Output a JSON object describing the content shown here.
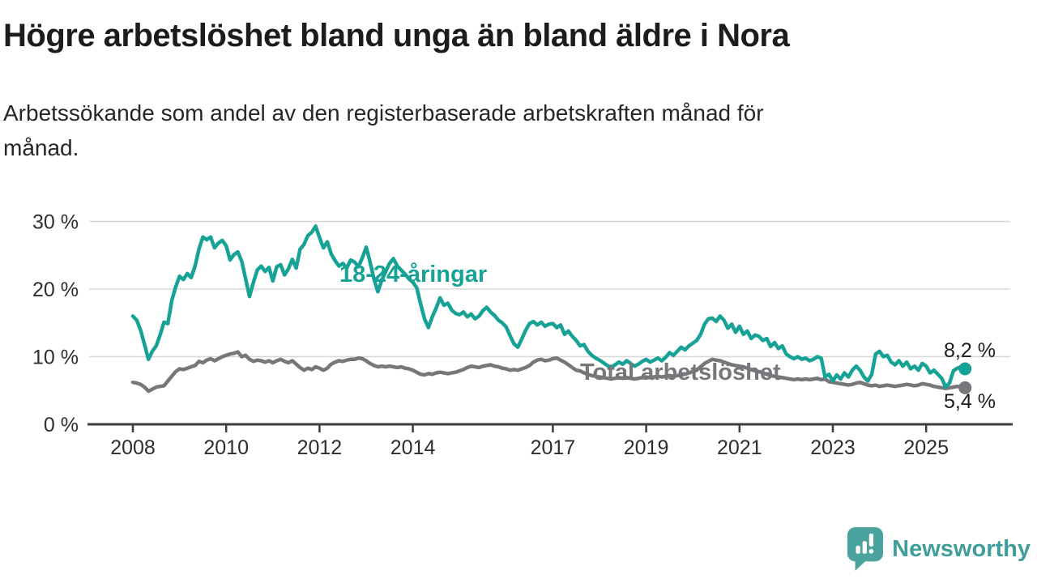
{
  "header": {
    "title": "Högre arbetslöshet bland unga än bland äldre i Nora",
    "subtitle_lines": [
      "Arbetssökande som andel av den registerbaserade arbetskraften månad för",
      "månad."
    ]
  },
  "chart_data": {
    "type": "line",
    "title": "Högre arbetslöshet bland unga än bland äldre i Nora",
    "subtitle": "Arbetssökande som andel av den registerbaserade arbetskraften månad för månad.",
    "x_unit": "month",
    "x_start": "2008-01",
    "x_end": "2025-11",
    "x_start_year": 2008,
    "ylim": [
      0,
      30
    ],
    "grid": true,
    "y_ticks": [
      30,
      20,
      10,
      0
    ],
    "y_tick_labels": [
      "30 %",
      "20 %",
      "10 %",
      "0 %"
    ],
    "x_ticks": [
      2008,
      2010,
      2012,
      2014,
      2017,
      2019,
      2021,
      2023,
      2025
    ],
    "x_tick_labels": [
      "2008",
      "2010",
      "2012",
      "2014",
      "2017",
      "2019",
      "2021",
      "2023",
      "2025"
    ],
    "series": [
      {
        "name": "Total arbetslöshet",
        "color": "#77767a",
        "end_label": "5,4 %",
        "end_value": 5.4,
        "values": [
          6.2,
          6.1,
          5.9,
          5.5,
          4.9,
          5.2,
          5.5,
          5.6,
          5.7,
          6.4,
          7.1,
          7.8,
          8.2,
          8.1,
          8.3,
          8.5,
          8.7,
          9.3,
          9.1,
          9.5,
          9.7,
          9.4,
          9.7,
          10.0,
          10.2,
          10.4,
          10.5,
          10.7,
          10.0,
          10.2,
          9.6,
          9.3,
          9.5,
          9.4,
          9.2,
          9.4,
          9.1,
          9.4,
          9.6,
          9.3,
          9.1,
          9.4,
          8.9,
          8.4,
          8.0,
          8.3,
          8.1,
          8.5,
          8.3,
          8.0,
          8.3,
          8.9,
          9.2,
          9.4,
          9.3,
          9.5,
          9.6,
          9.6,
          9.8,
          9.7,
          9.4,
          9.0,
          8.7,
          8.5,
          8.6,
          8.5,
          8.6,
          8.5,
          8.4,
          8.5,
          8.3,
          8.2,
          8.0,
          7.7,
          7.4,
          7.3,
          7.5,
          7.4,
          7.6,
          7.7,
          7.6,
          7.5,
          7.6,
          7.7,
          7.9,
          8.1,
          8.4,
          8.6,
          8.5,
          8.4,
          8.6,
          8.7,
          8.8,
          8.6,
          8.5,
          8.3,
          8.2,
          8.0,
          8.1,
          8.0,
          8.2,
          8.4,
          8.7,
          9.2,
          9.5,
          9.6,
          9.4,
          9.5,
          9.7,
          9.8,
          9.5,
          9.2,
          8.8,
          8.4,
          8.0,
          7.9,
          7.6,
          7.4,
          7.2,
          7.1,
          7.0,
          6.9,
          6.8,
          6.7,
          6.8,
          6.9,
          6.8,
          6.9,
          6.8,
          6.7,
          6.8,
          6.9,
          7.0,
          6.9,
          7.0,
          7.1,
          7.0,
          7.1,
          7.2,
          7.1,
          7.2,
          7.3,
          7.4,
          7.6,
          7.8,
          8.0,
          8.5,
          9.0,
          9.3,
          9.6,
          9.5,
          9.4,
          9.2,
          9.0,
          8.8,
          8.7,
          8.6,
          8.5,
          8.3,
          8.1,
          7.9,
          7.8,
          7.6,
          7.4,
          7.2,
          7.1,
          7.0,
          6.9,
          6.8,
          6.7,
          6.6,
          6.7,
          6.6,
          6.7,
          6.6,
          6.7,
          6.8,
          6.6,
          6.7,
          6.3,
          6.2,
          6.1,
          6.0,
          5.9,
          5.8,
          5.9,
          6.1,
          6.2,
          6.0,
          5.8,
          5.7,
          5.8,
          5.6,
          5.7,
          5.8,
          5.7,
          5.6,
          5.7,
          5.8,
          5.9,
          5.8,
          5.7,
          5.8,
          6.0,
          5.9,
          5.8,
          5.6,
          5.5,
          5.4,
          5.3,
          5.4,
          5.5,
          5.6,
          5.5,
          5.4
        ]
      },
      {
        "name": "18-24-åringar",
        "color": "#17a296",
        "end_label": "8,2 %",
        "end_value": 8.2,
        "values": [
          16.0,
          15.4,
          13.9,
          11.8,
          9.6,
          10.8,
          11.6,
          13.2,
          15.1,
          14.9,
          18.3,
          20.3,
          21.9,
          21.4,
          22.3,
          21.7,
          23.4,
          25.9,
          27.7,
          27.3,
          27.7,
          26.1,
          26.8,
          27.2,
          26.4,
          24.3,
          25.1,
          25.5,
          24.1,
          21.5,
          18.9,
          21.0,
          22.8,
          23.4,
          22.6,
          23.2,
          21.2,
          23.3,
          23.6,
          22.1,
          23.0,
          24.4,
          23.1,
          25.9,
          26.6,
          27.9,
          28.4,
          29.3,
          27.6,
          26.1,
          27.0,
          25.2,
          24.2,
          23.4,
          23.8,
          23.1,
          24.3,
          24.0,
          23.3,
          24.6,
          26.2,
          24.0,
          21.5,
          19.6,
          21.3,
          22.6,
          23.8,
          24.5,
          23.4,
          22.8,
          22.2,
          21.5,
          21.0,
          20.2,
          17.8,
          15.6,
          14.3,
          15.9,
          17.2,
          18.7,
          17.6,
          17.9,
          16.9,
          16.4,
          16.2,
          16.6,
          15.9,
          16.3,
          15.6,
          16.0,
          16.8,
          17.3,
          16.6,
          16.1,
          15.4,
          15.0,
          14.4,
          13.1,
          11.9,
          11.4,
          12.6,
          13.9,
          14.9,
          15.2,
          14.7,
          15.1,
          14.5,
          14.8,
          14.9,
          14.3,
          14.7,
          13.3,
          13.8,
          13.0,
          12.4,
          11.6,
          11.8,
          10.8,
          10.2,
          9.8,
          9.5,
          9.1,
          8.7,
          8.4,
          8.8,
          9.2,
          8.9,
          9.4,
          9.0,
          8.6,
          8.9,
          9.3,
          9.6,
          9.2,
          9.5,
          9.8,
          9.4,
          9.9,
          10.6,
          10.2,
          10.8,
          11.4,
          11.0,
          11.6,
          12.0,
          12.4,
          13.3,
          14.8,
          15.6,
          15.7,
          15.2,
          16.0,
          15.4,
          14.2,
          14.8,
          13.6,
          14.5,
          13.3,
          13.8,
          12.7,
          13.2,
          13.0,
          12.4,
          12.7,
          11.5,
          12.1,
          11.2,
          11.6,
          10.4,
          10.0,
          9.7,
          10.0,
          9.6,
          9.8,
          9.4,
          9.6,
          10.0,
          9.8,
          7.0,
          7.4,
          6.4,
          7.3,
          6.7,
          7.6,
          7.0,
          8.0,
          8.6,
          8.0,
          7.0,
          6.4,
          7.4,
          10.4,
          10.8,
          10.0,
          10.2,
          9.2,
          8.8,
          9.4,
          8.6,
          9.2,
          8.2,
          8.6,
          8.0,
          9.0,
          8.6,
          7.6,
          8.0,
          7.4,
          6.8,
          5.5,
          6.1,
          7.9,
          8.3,
          8.5,
          8.2
        ]
      }
    ],
    "annotations": {
      "youth_label": "18-24-åringar",
      "total_label": "Total arbetslöshet"
    }
  },
  "footer": {
    "brand": "Newsworthy"
  },
  "colors": {
    "accent_teal": "#17a296",
    "series_gray": "#77767a",
    "gridline": "#d8d8d8",
    "axis": "#3d3d3d",
    "text": "#1c1c1c",
    "brand_teal": "#3f9e99"
  }
}
